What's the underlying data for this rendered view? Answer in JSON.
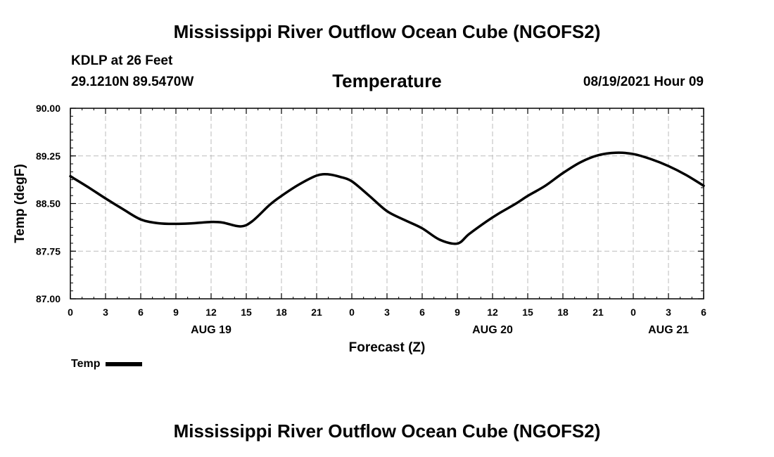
{
  "title": "Mississippi River Outflow Ocean Cube (NGOFS2)",
  "footer_title": "Mississippi River Outflow Ocean Cube (NGOFS2)",
  "station": "KDLP at 26 Feet",
  "coordinates": "29.1210N  89.5470W",
  "variable": "Temperature",
  "datetime": "08/19/2021 Hour 09",
  "legend": {
    "label": "Temp",
    "color": "#000000"
  },
  "chart_data": {
    "type": "line",
    "title": "Temperature",
    "xlabel": "Forecast (Z)",
    "ylabel": "Temp (degF)",
    "xlim": [
      0,
      54
    ],
    "ylim": [
      87.0,
      90.0
    ],
    "yticks": [
      "90.00",
      "89.25",
      "88.50",
      "87.75",
      "87.00"
    ],
    "ytick_values": [
      90.0,
      89.25,
      88.5,
      87.75,
      87.0
    ],
    "xticks": [
      0,
      3,
      6,
      9,
      12,
      15,
      18,
      21,
      24,
      27,
      30,
      33,
      36,
      39,
      42,
      45,
      48,
      51,
      54
    ],
    "xtick_labels": [
      "0",
      "3",
      "6",
      "9",
      "12",
      "15",
      "18",
      "21",
      "0",
      "3",
      "6",
      "9",
      "12",
      "15",
      "18",
      "21",
      "0",
      "3",
      "6"
    ],
    "date_labels": [
      {
        "label": "AUG 19",
        "x": 12
      },
      {
        "label": "AUG 20",
        "x": 36
      },
      {
        "label": "AUG 21",
        "x": 51
      }
    ],
    "grid": true,
    "series": [
      {
        "name": "Temp",
        "color": "#000000",
        "x": [
          0,
          1.5,
          3,
          4.5,
          6,
          7.5,
          9,
          10.5,
          12,
          13,
          14.5,
          15.5,
          17,
          18,
          19.5,
          21,
          22,
          23,
          24,
          25.5,
          27,
          28.5,
          30,
          31.5,
          33,
          34,
          35.5,
          36.5,
          38,
          39,
          40.5,
          42,
          43.5,
          45,
          46.5,
          48,
          49.5,
          51,
          52.5,
          54
        ],
        "values": [
          88.93,
          88.76,
          88.58,
          88.41,
          88.25,
          88.19,
          88.18,
          88.19,
          88.21,
          88.2,
          88.14,
          88.22,
          88.48,
          88.62,
          88.8,
          88.94,
          88.96,
          88.92,
          88.85,
          88.62,
          88.38,
          88.24,
          88.11,
          87.93,
          87.87,
          88.02,
          88.22,
          88.34,
          88.5,
          88.62,
          88.78,
          88.98,
          89.15,
          89.26,
          89.3,
          89.28,
          89.2,
          89.09,
          88.95,
          88.78
        ]
      }
    ]
  }
}
